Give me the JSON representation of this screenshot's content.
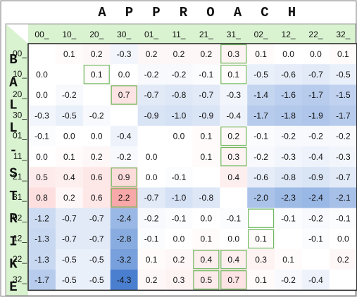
{
  "chart_data": {
    "type": "heatmap",
    "title": "APPROACH",
    "ylabel": "BALL-STRIKE",
    "x_categories": [
      "00_",
      "10_",
      "20_",
      "30_",
      "01_",
      "11_",
      "21_",
      "31_",
      "02_",
      "12_",
      "22_",
      "32_"
    ],
    "y_categories": [
      "00_",
      "10_",
      "20_",
      "30_",
      "01_",
      "11_",
      "21_",
      "31_",
      "02_",
      "12_",
      "22_",
      "32_"
    ],
    "values": [
      [
        null,
        0.1,
        0.2,
        -0.3,
        0.2,
        0.2,
        0.2,
        0.3,
        0.1,
        0.0,
        0.0,
        0.1
      ],
      [
        0.0,
        null,
        0.1,
        0.0,
        -0.2,
        -0.2,
        -0.1,
        0.1,
        -0.5,
        -0.6,
        -0.7,
        -0.5
      ],
      [
        0.0,
        -0.2,
        null,
        0.7,
        -0.7,
        -0.8,
        -0.7,
        -0.3,
        -1.4,
        -1.6,
        -1.7,
        -1.5
      ],
      [
        -0.3,
        -0.5,
        -0.2,
        null,
        -0.9,
        -1.0,
        -0.9,
        -0.4,
        -1.7,
        -1.8,
        -1.9,
        -1.7
      ],
      [
        -0.1,
        0.0,
        0.0,
        -0.4,
        null,
        0.0,
        0.1,
        0.2,
        -0.1,
        -0.2,
        -0.2,
        -0.2
      ],
      [
        0.0,
        0.1,
        0.2,
        -0.2,
        0.0,
        null,
        0.1,
        0.3,
        -0.2,
        -0.3,
        -0.4,
        -0.3
      ],
      [
        0.5,
        0.4,
        0.6,
        0.9,
        0.0,
        -0.1,
        null,
        0.4,
        -0.6,
        -0.8,
        -0.9,
        -0.7
      ],
      [
        0.8,
        0.2,
        0.6,
        2.2,
        -0.7,
        -1.0,
        -0.8,
        null,
        -2.0,
        -2.3,
        -2.4,
        -2.1
      ],
      [
        -1.2,
        -0.7,
        -0.7,
        -2.4,
        -0.2,
        -0.1,
        0.0,
        -0.1,
        null,
        -0.1,
        -0.2,
        -0.1
      ],
      [
        -1.3,
        -0.7,
        -0.7,
        -2.8,
        -0.1,
        0.0,
        0.1,
        0.0,
        0.1,
        null,
        -0.1,
        0.0
      ],
      [
        -1.3,
        -0.5,
        -0.5,
        -3.2,
        0.1,
        0.2,
        0.4,
        0.4,
        0.3,
        0.1,
        null,
        0.2
      ],
      [
        -1.7,
        -0.5,
        -0.5,
        -4.3,
        0.2,
        0.3,
        0.5,
        0.7,
        0.1,
        -0.2,
        -0.4,
        null
      ]
    ],
    "color_scale": {
      "negative": "#4a7fd0",
      "zero": "#ffffff",
      "positive": "#f25555",
      "max_abs": 4.3
    },
    "diagonal_cells_blank": true,
    "accent_color": "#d9f2d0",
    "highlight_color": "#6fb85f",
    "highlight_cells": [
      [
        0,
        7
      ],
      [
        1,
        2
      ],
      [
        1,
        7
      ],
      [
        2,
        3
      ],
      [
        4,
        7
      ],
      [
        5,
        7
      ],
      [
        6,
        3
      ],
      [
        7,
        3
      ],
      [
        8,
        8
      ],
      [
        9,
        8
      ],
      [
        10,
        6
      ],
      [
        10,
        7
      ],
      [
        11,
        6
      ],
      [
        11,
        7
      ]
    ],
    "grid": false,
    "legend": "none"
  }
}
